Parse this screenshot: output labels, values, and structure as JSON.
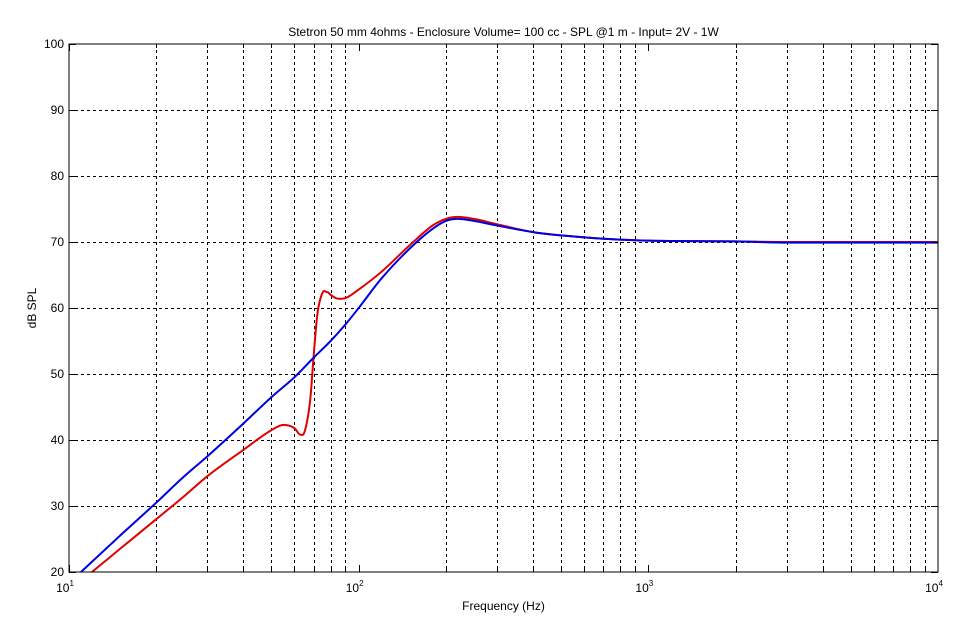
{
  "chart_data": {
    "type": "line",
    "title": "Stetron 50 mm 4ohms  - Enclosure Volume= 100 cc - SPL @1 m - Input= 2V - 1W",
    "xlabel": "Frequency (Hz)",
    "ylabel": "dB SPL",
    "xscale": "log",
    "xlim": [
      10,
      10000
    ],
    "ylim": [
      20,
      100
    ],
    "grid": true,
    "x_ticks": [
      {
        "base": "10",
        "exp": "1"
      },
      {
        "base": "10",
        "exp": "2"
      },
      {
        "base": "10",
        "exp": "3"
      },
      {
        "base": "10",
        "exp": "4"
      }
    ],
    "y_ticks": [
      "20",
      "30",
      "40",
      "50",
      "60",
      "70",
      "80",
      "90",
      "100"
    ],
    "series": [
      {
        "color": "#e00000",
        "x": [
          12,
          15,
          20,
          25,
          30,
          40,
          50,
          55,
          60,
          63,
          65,
          68,
          70,
          72,
          75,
          78,
          80,
          85,
          90,
          100,
          120,
          150,
          180,
          200,
          220,
          250,
          300,
          400,
          500,
          700,
          1000,
          2000,
          3000,
          5000,
          10000
        ],
        "y": [
          20,
          23.5,
          28,
          31.5,
          34.5,
          38.5,
          41.5,
          42.3,
          41.8,
          40.8,
          41.2,
          46,
          53,
          59,
          62.3,
          62.4,
          62.0,
          61.4,
          61.5,
          62.8,
          65.5,
          69.5,
          72.5,
          73.5,
          73.8,
          73.5,
          72.7,
          71.5,
          71.0,
          70.5,
          70.2,
          70.1,
          70.0,
          70.0,
          70.0
        ]
      },
      {
        "color": "#0000e0",
        "x": [
          11,
          15,
          20,
          25,
          30,
          40,
          50,
          60,
          70,
          80,
          90,
          100,
          120,
          150,
          180,
          200,
          220,
          250,
          300,
          400,
          500,
          700,
          1000,
          2000,
          3000,
          5000,
          10000
        ],
        "y": [
          20,
          25.5,
          30.5,
          34.5,
          37.5,
          42.5,
          46.5,
          49.5,
          52.5,
          55,
          57.5,
          60,
          64.5,
          69,
          72,
          73.2,
          73.5,
          73.2,
          72.5,
          71.5,
          71.0,
          70.5,
          70.2,
          70.1,
          69.9,
          69.9,
          69.9
        ]
      }
    ]
  }
}
